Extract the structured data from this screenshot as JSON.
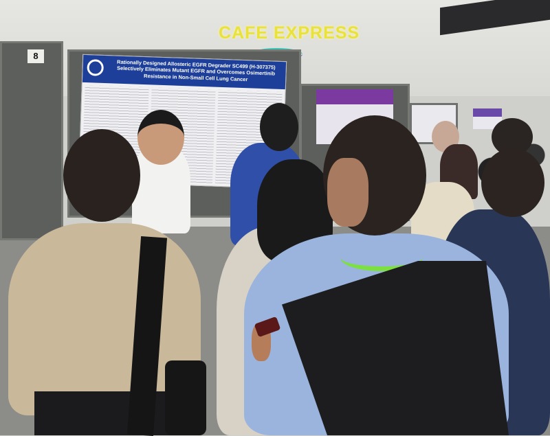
{
  "scene": {
    "sign_text": "CAFE EXPRESS",
    "booth_number": "8",
    "poster_title": "Rationally Designed Allosteric EGFR Degrader SC499 (H-307375) Selectively Eliminates Mutant EGFR and Overcomes Osimertinib Resistance in Non-Small Cell Lung Cancer",
    "colors": {
      "poster_header": "#1d3f9a",
      "sign": "#e8e23a",
      "lanyard": "#7ce040"
    }
  }
}
